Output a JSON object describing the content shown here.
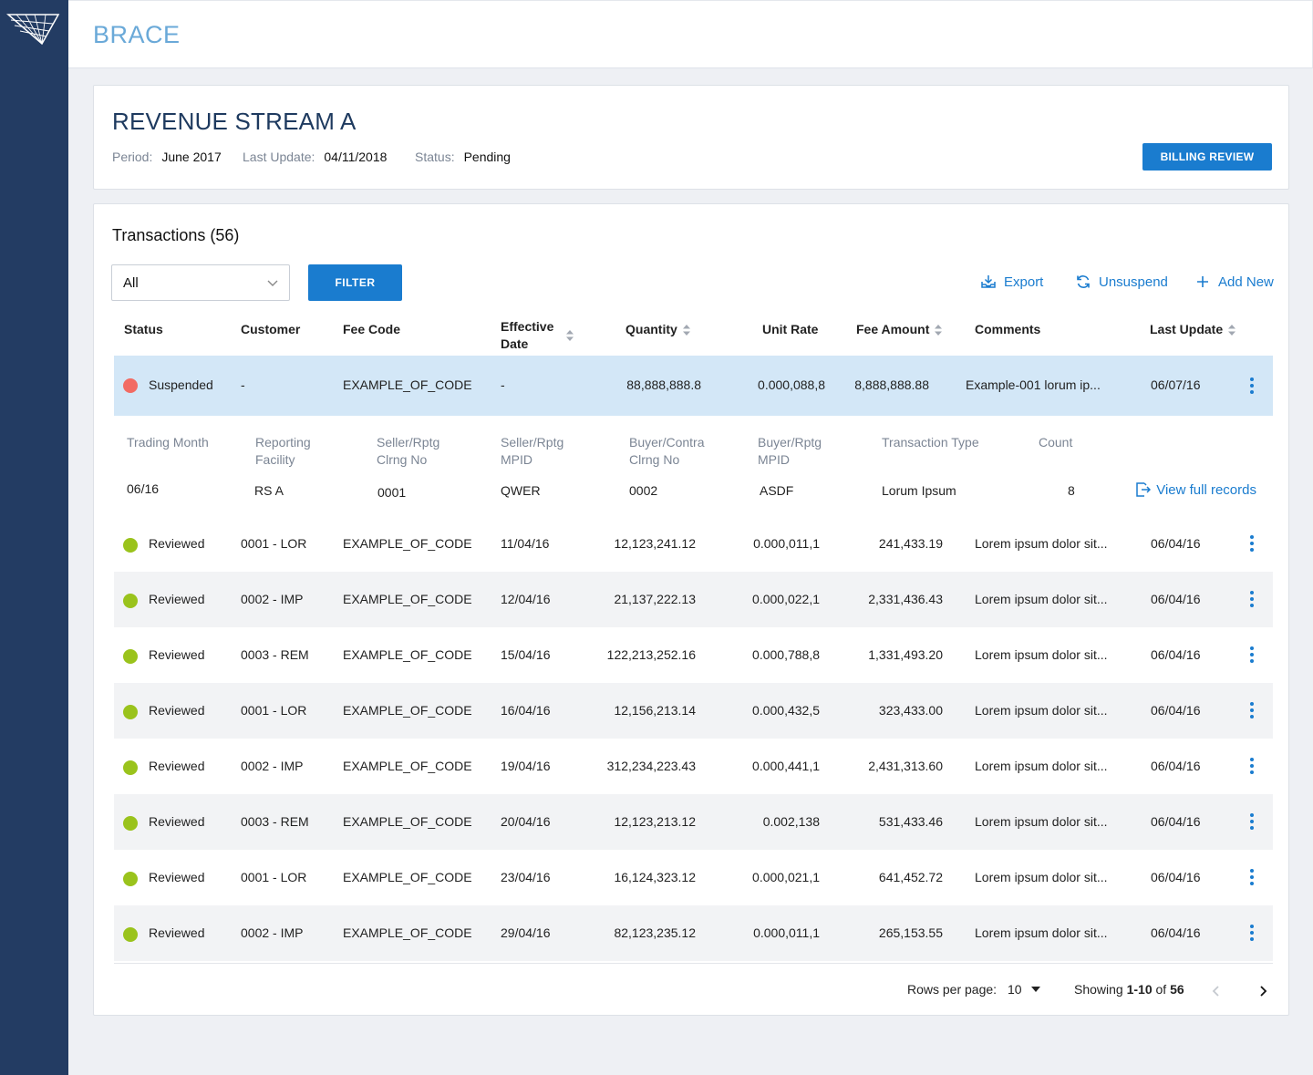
{
  "app": {
    "title": "BRACE",
    "logo": "brand-logo"
  },
  "header": {
    "title": "REVENUE STREAM A",
    "period_label": "Period:",
    "period_value": "June 2017",
    "last_update_label": "Last Update:",
    "last_update_value": "04/11/2018",
    "status_label": "Status:",
    "status_value": "Pending",
    "billing_button": "BILLING REVIEW"
  },
  "transactions": {
    "title": "Transactions (56)",
    "filter_select_value": "All",
    "filter_button": "FILTER",
    "actions": {
      "export": "Export",
      "unsuspend": "Unsuspend",
      "add_new": "Add New"
    },
    "columns": {
      "status": "Status",
      "customer": "Customer",
      "fee_code": "Fee Code",
      "effective_date_1": "Effective",
      "effective_date_2": "Date",
      "quantity": "Quantity",
      "unit_rate": "Unit Rate",
      "fee_amount": "Fee Amount",
      "comments": "Comments",
      "last_update": "Last Update"
    },
    "selected_row": {
      "status": "Suspended",
      "customer": "-",
      "fee_code": "EXAMPLE_OF_CODE",
      "effective_date": "-",
      "quantity": "88,888,888.8",
      "unit_rate": "0.000,088,8",
      "fee_amount": "8,888,888.88",
      "comments": "Example-001 lorum ip...",
      "last_update": "06/07/16"
    },
    "detail": {
      "labels": {
        "trading_month": "Trading Month",
        "reporting_facility_1": "Reporting",
        "reporting_facility_2": "Facility",
        "seller_clrng_1": "Seller/Rptg",
        "seller_clrng_2": "Clrng No",
        "seller_mpid_1": "Seller/Rptg",
        "seller_mpid_2": "MPID",
        "buyer_clrng_1": "Buyer/Contra",
        "buyer_clrng_2": "Clrng No",
        "buyer_mpid_1": "Buyer/Rptg",
        "buyer_mpid_2": "MPID",
        "transaction_type": "Transaction Type",
        "count": "Count"
      },
      "values": {
        "trading_month": "06/16",
        "reporting_facility": "RS A",
        "seller_clrng": "0001",
        "seller_mpid": "QWER",
        "buyer_clrng": "0002",
        "buyer_mpid": "ASDF",
        "transaction_type": "Lorum Ipsum",
        "count": "8"
      },
      "view_link": "View full records"
    },
    "rows": [
      {
        "status": "Reviewed",
        "customer": "0001 - LOR",
        "fee_code": "EXAMPLE_OF_CODE",
        "effective_date": "11/04/16",
        "quantity": "12,123,241.12",
        "unit_rate": "0.000,011,1",
        "fee_amount": "241,433.19",
        "comments": "Lorem ipsum dolor sit...",
        "last_update": "06/04/16"
      },
      {
        "status": "Reviewed",
        "customer": "0002 - IMP",
        "fee_code": "EXAMPLE_OF_CODE",
        "effective_date": "12/04/16",
        "quantity": "21,137,222.13",
        "unit_rate": "0.000,022,1",
        "fee_amount": "2,331,436.43",
        "comments": "Lorem ipsum dolor sit...",
        "last_update": "06/04/16"
      },
      {
        "status": "Reviewed",
        "customer": "0003 - REM",
        "fee_code": "EXAMPLE_OF_CODE",
        "effective_date": "15/04/16",
        "quantity": "122,213,252.16",
        "unit_rate": "0.000,788,8",
        "fee_amount": "1,331,493.20",
        "comments": "Lorem ipsum dolor sit...",
        "last_update": "06/04/16"
      },
      {
        "status": "Reviewed",
        "customer": "0001 - LOR",
        "fee_code": "EXAMPLE_OF_CODE",
        "effective_date": "16/04/16",
        "quantity": "12,156,213.14",
        "unit_rate": "0.000,432,5",
        "fee_amount": "323,433.00",
        "comments": "Lorem ipsum dolor sit...",
        "last_update": "06/04/16"
      },
      {
        "status": "Reviewed",
        "customer": "0002 - IMP",
        "fee_code": "EXAMPLE_OF_CODE",
        "effective_date": "19/04/16",
        "quantity": "312,234,223.43",
        "unit_rate": "0.000,441,1",
        "fee_amount": "2,431,313.60",
        "comments": "Lorem ipsum dolor sit...",
        "last_update": "06/04/16"
      },
      {
        "status": "Reviewed",
        "customer": "0003 - REM",
        "fee_code": "EXAMPLE_OF_CODE",
        "effective_date": "20/04/16",
        "quantity": "12,123,213.12",
        "unit_rate": "0.002,138",
        "fee_amount": "531,433.46",
        "comments": "Lorem ipsum dolor sit...",
        "last_update": "06/04/16"
      },
      {
        "status": "Reviewed",
        "customer": "0001 - LOR",
        "fee_code": "EXAMPLE_OF_CODE",
        "effective_date": "23/04/16",
        "quantity": "16,124,323.12",
        "unit_rate": "0.000,021,1",
        "fee_amount": "641,452.72",
        "comments": "Lorem ipsum dolor sit...",
        "last_update": "06/04/16"
      },
      {
        "status": "Reviewed",
        "customer": "0002 - IMP",
        "fee_code": "EXAMPLE_OF_CODE",
        "effective_date": "29/04/16",
        "quantity": "82,123,235.12",
        "unit_rate": "0.000,011,1",
        "fee_amount": "265,153.55",
        "comments": "Lorem ipsum dolor sit...",
        "last_update": "06/04/16"
      }
    ],
    "pagination": {
      "rows_per_page_label": "Rows per page:",
      "rows_per_page_value": "10",
      "showing_prefix": "Showing",
      "showing_range": "1-10",
      "showing_of": "of",
      "showing_total": "56"
    }
  },
  "colors": {
    "sidebar": "#233c63",
    "accent": "#1a7ccf",
    "suspended": "#f26b63",
    "reviewed": "#9ac31c",
    "selected_row": "#d3e7f7"
  },
  "icons": [
    "brand-logo",
    "chevron-down-icon",
    "export-icon",
    "refresh-icon",
    "plus-icon",
    "sort-icon",
    "more-vert-icon",
    "open-record-icon",
    "caret-down-icon",
    "chevron-left-icon",
    "chevron-right-icon"
  ]
}
